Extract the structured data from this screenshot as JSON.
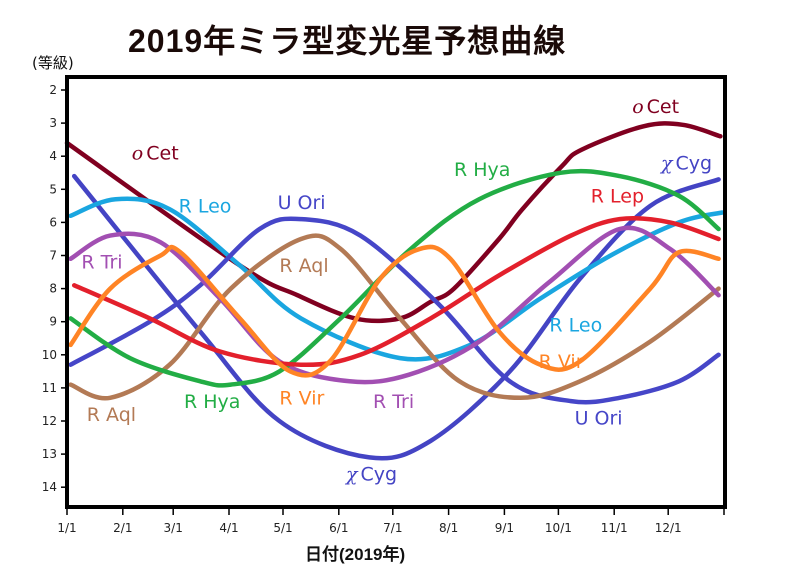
{
  "chart_data": {
    "type": "line",
    "title": "2019年ミラ型変光星予想曲線",
    "xlabel": "日付(2019年)",
    "ylabel": "(等級)",
    "y_inverted": true,
    "ylim": [
      2,
      14.6
    ],
    "yticks": [
      2,
      3,
      4,
      5,
      6,
      7,
      8,
      9,
      10,
      11,
      12,
      13,
      14
    ],
    "xlim_day_of_year": [
      0,
      365
    ],
    "xticks": [
      {
        "label": "1/1",
        "day": 0
      },
      {
        "label": "2/1",
        "day": 31
      },
      {
        "label": "3/1",
        "day": 59
      },
      {
        "label": "4/1",
        "day": 90
      },
      {
        "label": "5/1",
        "day": 120
      },
      {
        "label": "6/1",
        "day": 151
      },
      {
        "label": "7/1",
        "day": 181
      },
      {
        "label": "8/1",
        "day": 212
      },
      {
        "label": "9/1",
        "day": 243
      },
      {
        "label": "10/1",
        "day": 273
      },
      {
        "label": "11/1",
        "day": 304
      },
      {
        "label": "12/1",
        "day": 334
      },
      {
        "label": "",
        "day": 365
      }
    ],
    "grid": false,
    "series": [
      {
        "name": "o Cet",
        "color": "#800020",
        "points": [
          [
            0,
            3.6
          ],
          [
            96,
            7.3
          ],
          [
            128,
            8.2
          ],
          [
            160,
            8.9
          ],
          [
            185,
            8.9
          ],
          [
            202,
            8.4
          ],
          [
            215,
            8.0
          ],
          [
            240,
            6.5
          ],
          [
            253,
            5.6
          ],
          [
            275,
            4.3
          ],
          [
            286,
            3.8
          ],
          [
            320,
            3.1
          ],
          [
            342,
            3.05
          ],
          [
            363,
            3.4
          ]
        ],
        "labels": [
          {
            "text": "o Cet",
            "day": 36,
            "mag": 4.1
          },
          {
            "text": "o Cet",
            "day": 314,
            "mag": 2.7
          }
        ]
      },
      {
        "name": "χ Cyg",
        "color": "#4444c4",
        "points": [
          [
            4,
            4.6
          ],
          [
            74,
            9.3
          ],
          [
            118,
            12.0
          ],
          [
            168,
            13.1
          ],
          [
            202,
            12.6
          ],
          [
            246,
            10.5
          ],
          [
            285,
            7.7
          ],
          [
            324,
            5.5
          ],
          [
            362,
            4.7
          ]
        ],
        "labels": [
          {
            "text": "χ Cyg",
            "day": 155,
            "mag": 13.8
          },
          {
            "text": "χ Cyg",
            "day": 330,
            "mag": 4.4
          }
        ]
      },
      {
        "name": "R Leo",
        "color": "#1aa6e0",
        "points": [
          [
            2,
            5.8
          ],
          [
            27,
            5.3
          ],
          [
            57,
            5.6
          ],
          [
            96,
            7.3
          ],
          [
            130,
            8.9
          ],
          [
            185,
            10.1
          ],
          [
            224,
            9.7
          ],
          [
            263,
            8.3
          ],
          [
            302,
            7.0
          ],
          [
            340,
            6.0
          ],
          [
            364,
            5.7
          ]
        ],
        "labels": [
          {
            "text": "R Leo",
            "day": 62,
            "mag": 5.7
          },
          {
            "text": "R Leo",
            "day": 268,
            "mag": 9.3
          }
        ]
      },
      {
        "name": "U Ori",
        "color": "#4646c8",
        "points": [
          [
            2,
            10.3
          ],
          [
            46,
            9.0
          ],
          [
            74,
            7.9
          ],
          [
            107,
            6.2
          ],
          [
            130,
            5.9
          ],
          [
            163,
            6.4
          ],
          [
            207,
            8.5
          ],
          [
            246,
            10.8
          ],
          [
            280,
            11.4
          ],
          [
            307,
            11.3
          ],
          [
            340,
            10.8
          ],
          [
            362,
            10.0
          ]
        ],
        "labels": [
          {
            "text": "U Ori",
            "day": 117,
            "mag": 5.6
          },
          {
            "text": "U Ori",
            "day": 282,
            "mag": 12.1
          }
        ]
      },
      {
        "name": "R Aql",
        "color": "#b37a55",
        "points": [
          [
            2,
            10.9
          ],
          [
            24,
            11.3
          ],
          [
            57,
            10.3
          ],
          [
            91,
            8.0
          ],
          [
            130,
            6.5
          ],
          [
            152,
            6.8
          ],
          [
            185,
            8.9
          ],
          [
            218,
            10.8
          ],
          [
            252,
            11.3
          ],
          [
            285,
            10.8
          ],
          [
            324,
            9.6
          ],
          [
            362,
            8.0
          ]
        ],
        "labels": [
          {
            "text": "R Aql",
            "day": 11,
            "mag": 12.0
          },
          {
            "text": "R Aql",
            "day": 118,
            "mag": 7.5
          }
        ]
      },
      {
        "name": "R Tri",
        "color": "#a24fb2",
        "points": [
          [
            2,
            7.1
          ],
          [
            24,
            6.4
          ],
          [
            52,
            6.6
          ],
          [
            85,
            8.3
          ],
          [
            118,
            10.2
          ],
          [
            157,
            10.8
          ],
          [
            190,
            10.6
          ],
          [
            229,
            9.6
          ],
          [
            268,
            7.8
          ],
          [
            307,
            6.2
          ],
          [
            335,
            6.8
          ],
          [
            362,
            8.2
          ]
        ],
        "labels": [
          {
            "text": "R Tri",
            "day": 8,
            "mag": 7.4
          },
          {
            "text": "R Tri",
            "day": 170,
            "mag": 11.6
          }
        ]
      },
      {
        "name": "R Hya",
        "color": "#22ad45",
        "points": [
          [
            2,
            8.9
          ],
          [
            35,
            10.1
          ],
          [
            74,
            10.8
          ],
          [
            91,
            10.9
          ],
          [
            118,
            10.5
          ],
          [
            152,
            8.9
          ],
          [
            191,
            6.8
          ],
          [
            229,
            5.3
          ],
          [
            274,
            4.5
          ],
          [
            307,
            4.6
          ],
          [
            340,
            5.2
          ],
          [
            362,
            6.2
          ]
        ],
        "labels": [
          {
            "text": "R Hya",
            "day": 65,
            "mag": 11.6
          },
          {
            "text": "R Hya",
            "day": 215,
            "mag": 4.6
          }
        ]
      },
      {
        "name": "R Lep",
        "color": "#e3202c",
        "points": [
          [
            4,
            7.9
          ],
          [
            46,
            8.9
          ],
          [
            85,
            9.9
          ],
          [
            130,
            10.3
          ],
          [
            163,
            10.0
          ],
          [
            202,
            8.9
          ],
          [
            240,
            7.6
          ],
          [
            280,
            6.4
          ],
          [
            307,
            5.9
          ],
          [
            335,
            6.0
          ],
          [
            362,
            6.5
          ]
        ],
        "labels": [
          {
            "text": "R Lep",
            "day": 291,
            "mag": 5.4
          }
        ]
      },
      {
        "name": "R Vir",
        "color": "#ff8425",
        "points": [
          [
            2,
            9.7
          ],
          [
            24,
            8.0
          ],
          [
            52,
            7.0
          ],
          [
            63,
            6.9
          ],
          [
            96,
            8.9
          ],
          [
            124,
            10.5
          ],
          [
            146,
            10.2
          ],
          [
            174,
            7.7
          ],
          [
            196,
            6.8
          ],
          [
            213,
            7.1
          ],
          [
            240,
            9.3
          ],
          [
            263,
            10.3
          ],
          [
            285,
            10.2
          ],
          [
            324,
            8.0
          ],
          [
            340,
            6.9
          ],
          [
            362,
            7.1
          ]
        ],
        "labels": [
          {
            "text": "R Vir",
            "day": 118,
            "mag": 11.5
          },
          {
            "text": "R Vir",
            "day": 262,
            "mag": 10.4
          }
        ]
      }
    ]
  }
}
